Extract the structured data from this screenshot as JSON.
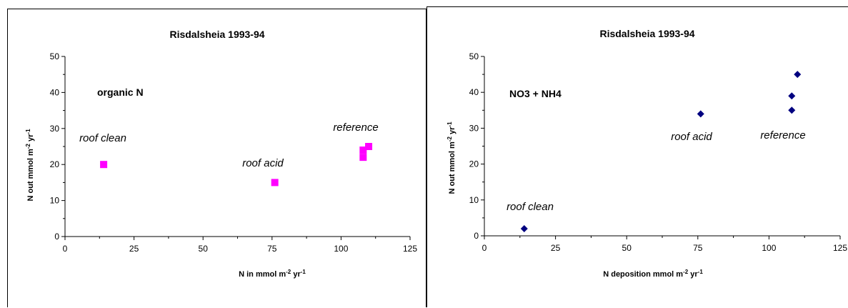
{
  "chart_data": [
    {
      "type": "scatter",
      "title": "Risdalsheia 1993-94",
      "xlabel_main": "N in mmol m",
      "xlabel_sup1": "-2",
      "xlabel_mid": " yr",
      "xlabel_sup2": "-1",
      "ylabel_main": "N out mmol m",
      "ylabel_sup1": "-2",
      "ylabel_mid": " yr",
      "ylabel_sup2": "-1",
      "xlim": [
        0,
        125
      ],
      "ylim": [
        0,
        50
      ],
      "x_ticks": [
        "0",
        "25",
        "50",
        "75",
        "100",
        "125"
      ],
      "y_ticks": [
        "0",
        "10",
        "20",
        "30",
        "40",
        "50"
      ],
      "grid": false,
      "marker": "square",
      "marker_color": "#ff00ff",
      "label": "organic N",
      "points": [
        {
          "x": 14,
          "y": 20
        },
        {
          "x": 76,
          "y": 15
        },
        {
          "x": 108,
          "y": 22
        },
        {
          "x": 108,
          "y": 24
        },
        {
          "x": 110,
          "y": 25
        }
      ],
      "annotations": [
        "roof clean",
        "roof acid",
        "reference"
      ]
    },
    {
      "type": "scatter",
      "title": "Risdalsheia 1993-94",
      "xlabel_main": "N deposition mmol m",
      "xlabel_sup1": "-2",
      "xlabel_mid": " yr",
      "xlabel_sup2": "-1",
      "ylabel_main": "N out mmol m",
      "ylabel_sup1": "-2",
      "ylabel_mid": " yr",
      "ylabel_sup2": "-1",
      "xlim": [
        0,
        125
      ],
      "ylim": [
        0,
        50
      ],
      "x_ticks": [
        "0",
        "25",
        "50",
        "75",
        "100",
        "125"
      ],
      "y_ticks": [
        "0",
        "10",
        "20",
        "30",
        "40",
        "50"
      ],
      "grid": false,
      "marker": "diamond",
      "marker_color": "#000080",
      "label": "NO3 + NH4",
      "points": [
        {
          "x": 14,
          "y": 2
        },
        {
          "x": 76,
          "y": 34
        },
        {
          "x": 108,
          "y": 35
        },
        {
          "x": 108,
          "y": 39
        },
        {
          "x": 110,
          "y": 45
        }
      ],
      "annotations": [
        "roof clean",
        "roof acid",
        "reference"
      ]
    }
  ]
}
